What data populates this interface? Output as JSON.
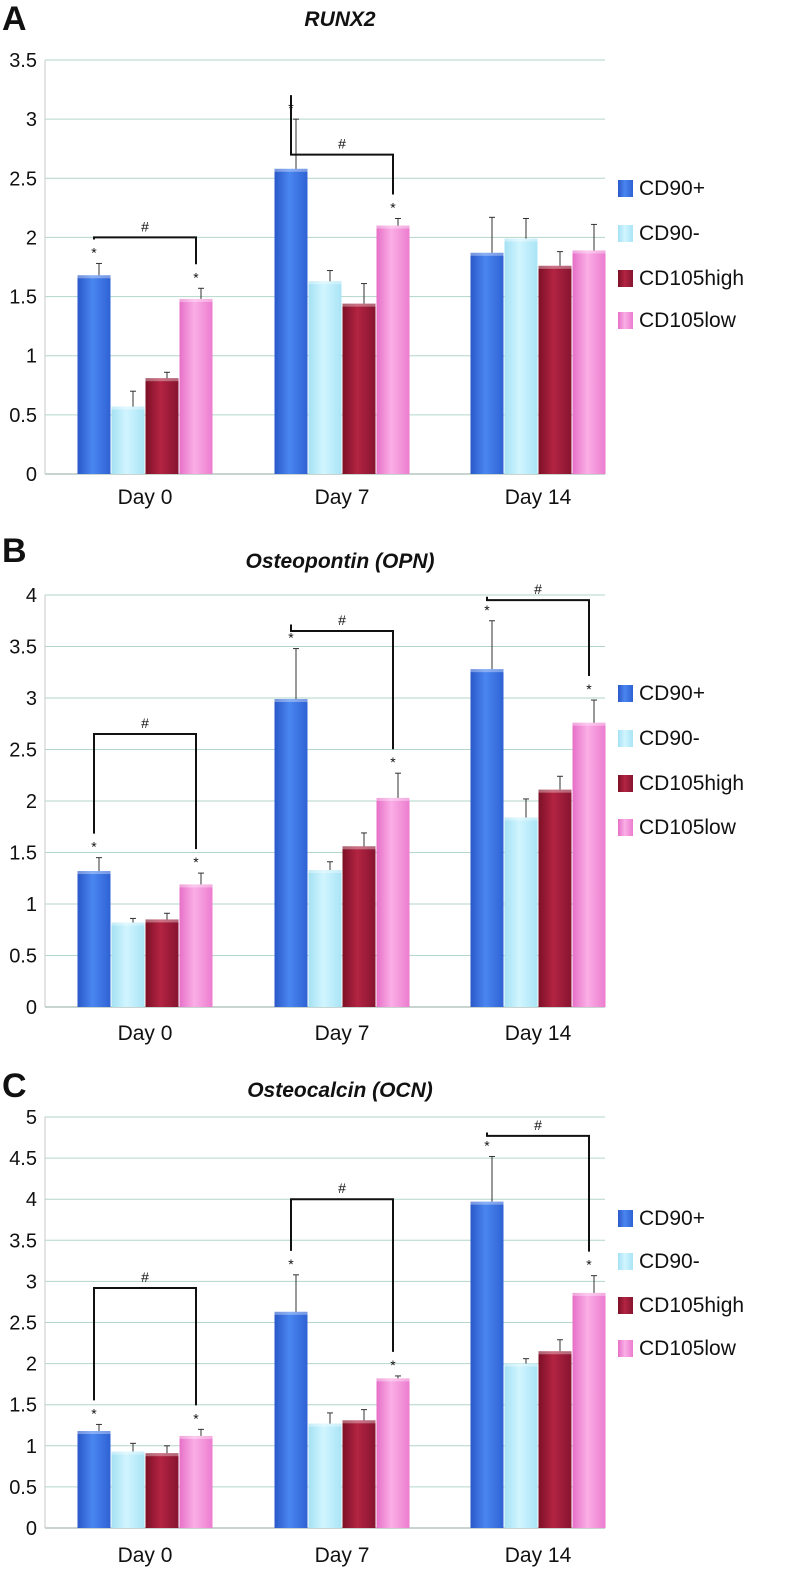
{
  "colors": {
    "CD90+": "#3a6fe0",
    "CD90-": "#b9ecfa",
    "CD105high": "#9b1b33",
    "CD105low": "#f48ad8",
    "grid": "#b3d6ca",
    "bracket": "#111111"
  },
  "chart_data": [
    {
      "type": "bar",
      "panel": "A",
      "title": "RUNX2",
      "categories": [
        "Day 0",
        "Day 7",
        "Day 14"
      ],
      "yticks": [
        "0",
        "0.5",
        "1",
        "1.5",
        "2",
        "2.5",
        "3",
        "3.5"
      ],
      "ylim": [
        0,
        3.5
      ],
      "legend": [
        "CD90+",
        "CD90-",
        "CD105high",
        "CD105low"
      ],
      "series": [
        {
          "name": "CD90+",
          "values": [
            1.68,
            2.58,
            1.87
          ],
          "errors": [
            0.1,
            0.42,
            0.3
          ]
        },
        {
          "name": "CD90-",
          "values": [
            0.57,
            1.63,
            1.99
          ],
          "errors": [
            0.13,
            0.09,
            0.17
          ]
        },
        {
          "name": "CD105high",
          "values": [
            0.81,
            1.44,
            1.76
          ],
          "errors": [
            0.05,
            0.17,
            0.12
          ]
        },
        {
          "name": "CD105low",
          "values": [
            1.48,
            2.1,
            1.89
          ],
          "errors": [
            0.09,
            0.06,
            0.22
          ]
        }
      ],
      "stars": [
        [
          0,
          0
        ],
        [
          0,
          3
        ],
        [
          1,
          0
        ],
        [
          1,
          3
        ]
      ],
      "brackets": [
        {
          "cat": 0,
          "top": 2.0,
          "label": "#"
        },
        {
          "cat": 1,
          "top": 2.7,
          "label": "#"
        }
      ],
      "star_label": "*"
    },
    {
      "type": "bar",
      "panel": "B",
      "title": "Osteopontin (OPN)",
      "categories": [
        "Day 0",
        "Day 7",
        "Day 14"
      ],
      "yticks": [
        "0",
        "0.5",
        "1",
        "1.5",
        "2",
        "2.5",
        "3",
        "3.5",
        "4"
      ],
      "ylim": [
        0,
        4
      ],
      "legend": [
        "CD90+",
        "CD90-",
        "CD105high",
        "CD105low"
      ],
      "series": [
        {
          "name": "CD90+",
          "values": [
            1.32,
            2.99,
            3.28
          ],
          "errors": [
            0.13,
            0.49,
            0.47
          ]
        },
        {
          "name": "CD90-",
          "values": [
            0.82,
            1.33,
            1.84
          ],
          "errors": [
            0.04,
            0.08,
            0.18
          ]
        },
        {
          "name": "CD105high",
          "values": [
            0.85,
            1.56,
            2.11
          ],
          "errors": [
            0.06,
            0.13,
            0.13
          ]
        },
        {
          "name": "CD105low",
          "values": [
            1.19,
            2.03,
            2.76
          ],
          "errors": [
            0.11,
            0.24,
            0.22
          ]
        }
      ],
      "stars": [
        [
          0,
          0
        ],
        [
          0,
          3
        ],
        [
          1,
          0
        ],
        [
          1,
          3
        ],
        [
          2,
          0
        ],
        [
          2,
          3
        ]
      ],
      "brackets": [
        {
          "cat": 0,
          "top": 2.65,
          "label": "#"
        },
        {
          "cat": 1,
          "top": 3.65,
          "label": "#"
        },
        {
          "cat": 2,
          "top": 3.95,
          "label": "#"
        }
      ],
      "star_label": "*"
    },
    {
      "type": "bar",
      "panel": "C",
      "title": "Osteocalcin (OCN)",
      "categories": [
        "Day 0",
        "Day 7",
        "Day 14"
      ],
      "yticks": [
        "0",
        "0.5",
        "1",
        "1.5",
        "2",
        "2.5",
        "3",
        "3.5",
        "4",
        "4.5",
        "5"
      ],
      "ylim": [
        0,
        5
      ],
      "legend": [
        "CD90+",
        "CD90-",
        "CD105high",
        "CD105low"
      ],
      "series": [
        {
          "name": "CD90+",
          "values": [
            1.18,
            2.63,
            3.97
          ],
          "errors": [
            0.08,
            0.45,
            0.55
          ]
        },
        {
          "name": "CD90-",
          "values": [
            0.93,
            1.27,
            2.0
          ],
          "errors": [
            0.1,
            0.13,
            0.06
          ]
        },
        {
          "name": "CD105high",
          "values": [
            0.91,
            1.31,
            2.15
          ],
          "errors": [
            0.09,
            0.13,
            0.14
          ]
        },
        {
          "name": "CD105low",
          "values": [
            1.12,
            1.82,
            2.86
          ],
          "errors": [
            0.08,
            0.03,
            0.21
          ]
        }
      ],
      "stars": [
        [
          0,
          0
        ],
        [
          0,
          3
        ],
        [
          1,
          0
        ],
        [
          1,
          3
        ],
        [
          2,
          0
        ],
        [
          2,
          3
        ]
      ],
      "brackets": [
        {
          "cat": 0,
          "top": 2.92,
          "label": "#"
        },
        {
          "cat": 1,
          "top": 4.0,
          "label": "#"
        },
        {
          "cat": 2,
          "top": 4.77,
          "label": "#"
        }
      ],
      "star_label": "*"
    }
  ]
}
